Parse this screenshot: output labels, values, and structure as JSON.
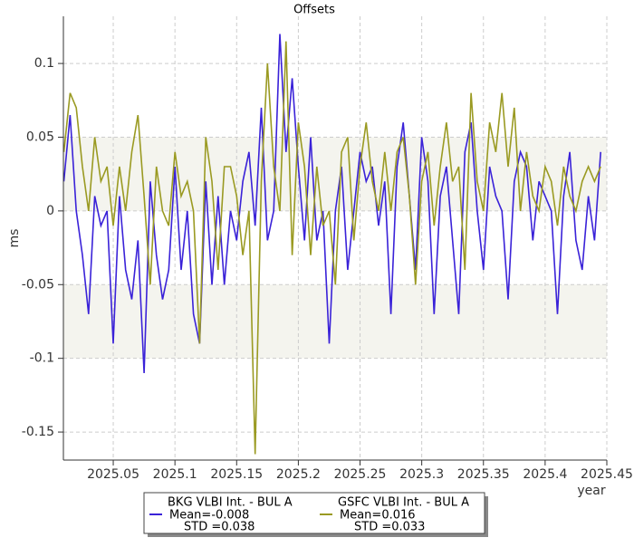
{
  "chart_data": {
    "type": "line",
    "title": "Offsets",
    "x_label": "year",
    "y_label": "ms",
    "x": [
      2025.01,
      2025.015,
      2025.02,
      2025.025,
      2025.03,
      2025.035,
      2025.04,
      2025.045,
      2025.05,
      2025.055,
      2025.06,
      2025.065,
      2025.07,
      2025.075,
      2025.08,
      2025.085,
      2025.09,
      2025.095,
      2025.1,
      2025.105,
      2025.11,
      2025.115,
      2025.12,
      2025.125,
      2025.13,
      2025.135,
      2025.14,
      2025.145,
      2025.15,
      2025.155,
      2025.16,
      2025.165,
      2025.17,
      2025.175,
      2025.18,
      2025.185,
      2025.19,
      2025.195,
      2025.2,
      2025.205,
      2025.21,
      2025.215,
      2025.22,
      2025.225,
      2025.23,
      2025.235,
      2025.24,
      2025.245,
      2025.25,
      2025.255,
      2025.26,
      2025.265,
      2025.27,
      2025.275,
      2025.28,
      2025.285,
      2025.29,
      2025.295,
      2025.3,
      2025.305,
      2025.31,
      2025.315,
      2025.32,
      2025.325,
      2025.33,
      2025.335,
      2025.34,
      2025.345,
      2025.35,
      2025.355,
      2025.36,
      2025.365,
      2025.37,
      2025.375,
      2025.38,
      2025.385,
      2025.39,
      2025.395,
      2025.4,
      2025.405,
      2025.41,
      2025.415,
      2025.42,
      2025.425,
      2025.43,
      2025.435,
      2025.44,
      2025.445
    ],
    "series": [
      {
        "name": "BKG VLBI Int. - BUL A",
        "color": "#3a22d8",
        "legend_lines": [
          "Mean=-0.008",
          "STD =0.038"
        ],
        "values": [
          0.02,
          0.065,
          0.0,
          -0.03,
          -0.07,
          0.01,
          -0.01,
          0.0,
          -0.09,
          0.01,
          -0.04,
          -0.06,
          -0.02,
          -0.11,
          0.02,
          -0.03,
          -0.06,
          -0.04,
          0.03,
          -0.04,
          0.0,
          -0.07,
          -0.09,
          0.02,
          -0.05,
          0.01,
          -0.05,
          0.0,
          -0.02,
          0.02,
          0.04,
          -0.01,
          0.07,
          -0.02,
          0.0,
          0.12,
          0.04,
          0.09,
          0.03,
          -0.02,
          0.05,
          -0.02,
          0.0,
          -0.09,
          0.0,
          0.03,
          -0.04,
          0.0,
          0.04,
          0.02,
          0.03,
          -0.01,
          0.02,
          -0.07,
          0.03,
          0.06,
          0.01,
          -0.04,
          0.05,
          0.02,
          -0.07,
          0.01,
          0.03,
          -0.02,
          -0.07,
          0.04,
          0.06,
          0.0,
          -0.04,
          0.03,
          0.01,
          0.0,
          -0.06,
          0.02,
          0.04,
          0.03,
          -0.02,
          0.02,
          0.01,
          0.0,
          -0.07,
          0.01,
          0.04,
          -0.02,
          -0.04,
          0.01,
          -0.02,
          0.04
        ]
      },
      {
        "name": "GSFC VLBI Int. - BUL A",
        "color": "#9a9a22",
        "legend_lines": [
          "Mean=0.016",
          "STD =0.033"
        ],
        "values": [
          0.04,
          0.08,
          0.07,
          0.03,
          0.0,
          0.05,
          0.02,
          0.03,
          -0.01,
          0.03,
          0.0,
          0.04,
          0.065,
          0.01,
          -0.05,
          0.03,
          0.0,
          -0.01,
          0.04,
          0.01,
          0.02,
          0.0,
          -0.09,
          0.05,
          0.02,
          -0.04,
          0.03,
          0.03,
          0.01,
          -0.03,
          0.0,
          -0.165,
          0.02,
          0.1,
          0.03,
          0.0,
          0.115,
          -0.03,
          0.06,
          0.03,
          -0.03,
          0.03,
          -0.01,
          0.0,
          -0.05,
          0.04,
          0.05,
          -0.02,
          0.03,
          0.06,
          0.02,
          0.0,
          0.04,
          0.0,
          0.04,
          0.05,
          0.01,
          -0.05,
          0.02,
          0.04,
          -0.01,
          0.03,
          0.06,
          0.02,
          0.03,
          -0.04,
          0.08,
          0.02,
          0.0,
          0.06,
          0.04,
          0.08,
          0.03,
          0.07,
          0.0,
          0.04,
          0.01,
          0.0,
          0.03,
          0.02,
          -0.01,
          0.03,
          0.01,
          0.0,
          0.02,
          0.03,
          0.02,
          0.03
        ]
      }
    ],
    "xlim": [
      2025.0096,
      2025.45
    ],
    "xticks": [
      2025.05,
      2025.1,
      2025.15,
      2025.2,
      2025.25,
      2025.3,
      2025.35,
      2025.4,
      2025.45
    ],
    "ylim": [
      -0.169,
      0.132
    ],
    "yticks": [
      0.1,
      0.05,
      0,
      -0.05,
      -0.1,
      -0.15
    ],
    "shaded_bands": [
      [
        0,
        0.05
      ],
      [
        -0.1,
        -0.05
      ]
    ],
    "grid": true
  }
}
